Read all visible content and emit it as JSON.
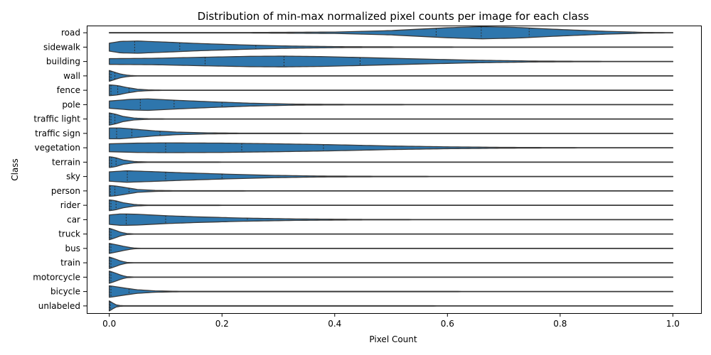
{
  "chart_data": {
    "type": "violin",
    "orientation": "horizontal",
    "title": "Distribution of min-max normalized pixel counts per image for each class",
    "xlabel": "Pixel Count",
    "ylabel": "Class",
    "xlim": [
      -0.04,
      1.05
    ],
    "xticks": [
      0.0,
      0.2,
      0.4,
      0.6,
      0.8,
      1.0
    ],
    "xtick_labels": [
      "0.0",
      "0.2",
      "0.4",
      "0.6",
      "0.8",
      "1.0"
    ],
    "grid": false,
    "color": "#2e76ad",
    "edge_color": "#3a3a3a",
    "categories": [
      "road",
      "sidewalk",
      "building",
      "wall",
      "fence",
      "pole",
      "traffic light",
      "traffic sign",
      "vegetation",
      "terrain",
      "sky",
      "person",
      "rider",
      "car",
      "truck",
      "bus",
      "train",
      "motorcycle",
      "bicycle",
      "unlabeled"
    ],
    "series": [
      {
        "category": "road",
        "quartiles": [
          0.58,
          0.66,
          0.745
        ],
        "profile": [
          [
            0,
            0.03
          ],
          [
            0.25,
            0.04
          ],
          [
            0.4,
            0.1
          ],
          [
            0.5,
            0.3
          ],
          [
            0.6,
            0.7
          ],
          [
            0.66,
            0.85
          ],
          [
            0.72,
            0.75
          ],
          [
            0.8,
            0.45
          ],
          [
            0.88,
            0.2
          ],
          [
            0.95,
            0.05
          ],
          [
            1,
            0.02
          ]
        ]
      },
      {
        "category": "sidewalk",
        "quartiles": [
          0.045,
          0.125,
          0.26
        ],
        "profile": [
          [
            0,
            0.55
          ],
          [
            0.02,
            0.8
          ],
          [
            0.05,
            0.85
          ],
          [
            0.1,
            0.7
          ],
          [
            0.16,
            0.5
          ],
          [
            0.24,
            0.3
          ],
          [
            0.32,
            0.15
          ],
          [
            0.42,
            0.06
          ],
          [
            0.55,
            0.03
          ],
          [
            1,
            0.02
          ]
        ]
      },
      {
        "category": "building",
        "quartiles": [
          0.17,
          0.31,
          0.445
        ],
        "profile": [
          [
            0,
            0.4
          ],
          [
            0.08,
            0.45
          ],
          [
            0.17,
            0.6
          ],
          [
            0.25,
            0.72
          ],
          [
            0.31,
            0.75
          ],
          [
            0.38,
            0.68
          ],
          [
            0.45,
            0.55
          ],
          [
            0.55,
            0.35
          ],
          [
            0.65,
            0.18
          ],
          [
            0.75,
            0.07
          ],
          [
            0.85,
            0.03
          ],
          [
            1,
            0.02
          ]
        ]
      },
      {
        "category": "wall",
        "quartiles": [
          0.0,
          0.003,
          0.01
        ],
        "profile": [
          [
            0,
            0.75
          ],
          [
            0.008,
            0.55
          ],
          [
            0.02,
            0.25
          ],
          [
            0.035,
            0.06
          ],
          [
            0.05,
            0.02
          ],
          [
            1,
            0.02
          ]
        ]
      },
      {
        "category": "fence",
        "quartiles": [
          0.003,
          0.015,
          0.035
        ],
        "profile": [
          [
            0,
            0.75
          ],
          [
            0.015,
            0.65
          ],
          [
            0.03,
            0.4
          ],
          [
            0.05,
            0.15
          ],
          [
            0.07,
            0.05
          ],
          [
            0.1,
            0.02
          ],
          [
            1,
            0.02
          ]
        ]
      },
      {
        "category": "pole",
        "quartiles": [
          0.055,
          0.115,
          0.2
        ],
        "profile": [
          [
            0,
            0.5
          ],
          [
            0.04,
            0.75
          ],
          [
            0.07,
            0.8
          ],
          [
            0.12,
            0.6
          ],
          [
            0.18,
            0.4
          ],
          [
            0.25,
            0.2
          ],
          [
            0.33,
            0.07
          ],
          [
            0.45,
            0.03
          ],
          [
            1,
            0.02
          ]
        ]
      },
      {
        "category": "traffic light",
        "quartiles": [
          0.0,
          0.003,
          0.01
        ],
        "profile": [
          [
            0,
            0.85
          ],
          [
            0.01,
            0.7
          ],
          [
            0.025,
            0.35
          ],
          [
            0.045,
            0.12
          ],
          [
            0.07,
            0.04
          ],
          [
            0.12,
            0.02
          ],
          [
            1,
            0.02
          ]
        ]
      },
      {
        "category": "traffic sign",
        "quartiles": [
          0.013,
          0.04,
          0.09
        ],
        "profile": [
          [
            0,
            0.75
          ],
          [
            0.02,
            0.75
          ],
          [
            0.05,
            0.55
          ],
          [
            0.08,
            0.35
          ],
          [
            0.12,
            0.18
          ],
          [
            0.17,
            0.08
          ],
          [
            0.24,
            0.03
          ],
          [
            1,
            0.02
          ]
        ]
      },
      {
        "category": "vegetation",
        "quartiles": [
          0.1,
          0.235,
          0.38
        ],
        "profile": [
          [
            0,
            0.55
          ],
          [
            0.05,
            0.65
          ],
          [
            0.1,
            0.68
          ],
          [
            0.2,
            0.65
          ],
          [
            0.3,
            0.55
          ],
          [
            0.4,
            0.42
          ],
          [
            0.5,
            0.25
          ],
          [
            0.6,
            0.13
          ],
          [
            0.7,
            0.06
          ],
          [
            0.8,
            0.03
          ],
          [
            1,
            0.02
          ]
        ]
      },
      {
        "category": "terrain",
        "quartiles": [
          0.0,
          0.004,
          0.012
        ],
        "profile": [
          [
            0,
            0.75
          ],
          [
            0.01,
            0.65
          ],
          [
            0.025,
            0.3
          ],
          [
            0.045,
            0.08
          ],
          [
            0.07,
            0.03
          ],
          [
            1,
            0.02
          ]
        ]
      },
      {
        "category": "sky",
        "quartiles": [
          0.032,
          0.1,
          0.2
        ],
        "profile": [
          [
            0,
            0.65
          ],
          [
            0.03,
            0.8
          ],
          [
            0.07,
            0.7
          ],
          [
            0.12,
            0.55
          ],
          [
            0.2,
            0.35
          ],
          [
            0.28,
            0.18
          ],
          [
            0.37,
            0.07
          ],
          [
            0.5,
            0.03
          ],
          [
            1,
            0.02
          ]
        ]
      },
      {
        "category": "person",
        "quartiles": [
          0.002,
          0.01,
          0.035
        ],
        "profile": [
          [
            0,
            0.75
          ],
          [
            0.01,
            0.7
          ],
          [
            0.03,
            0.45
          ],
          [
            0.05,
            0.2
          ],
          [
            0.08,
            0.07
          ],
          [
            0.12,
            0.03
          ],
          [
            1,
            0.02
          ]
        ]
      },
      {
        "category": "rider",
        "quartiles": [
          0.0,
          0.003,
          0.012
        ],
        "profile": [
          [
            0,
            0.75
          ],
          [
            0.01,
            0.65
          ],
          [
            0.025,
            0.35
          ],
          [
            0.045,
            0.1
          ],
          [
            0.07,
            0.03
          ],
          [
            1,
            0.02
          ]
        ]
      },
      {
        "category": "car",
        "quartiles": [
          0.03,
          0.1,
          0.245
        ],
        "profile": [
          [
            0,
            0.65
          ],
          [
            0.02,
            0.8
          ],
          [
            0.05,
            0.75
          ],
          [
            0.1,
            0.55
          ],
          [
            0.16,
            0.38
          ],
          [
            0.24,
            0.22
          ],
          [
            0.33,
            0.1
          ],
          [
            0.45,
            0.04
          ],
          [
            0.6,
            0.02
          ],
          [
            1,
            0.02
          ]
        ]
      },
      {
        "category": "truck",
        "quartiles": [
          0.0,
          0.0,
          0.003
        ],
        "profile": [
          [
            0,
            0.8
          ],
          [
            0.01,
            0.55
          ],
          [
            0.02,
            0.25
          ],
          [
            0.03,
            0.08
          ],
          [
            0.045,
            0.02
          ],
          [
            1,
            0.02
          ]
        ]
      },
      {
        "category": "bus",
        "quartiles": [
          0.0,
          0.0,
          0.003
        ],
        "profile": [
          [
            0,
            0.7
          ],
          [
            0.01,
            0.55
          ],
          [
            0.025,
            0.3
          ],
          [
            0.04,
            0.08
          ],
          [
            0.055,
            0.02
          ],
          [
            1,
            0.02
          ]
        ]
      },
      {
        "category": "train",
        "quartiles": [
          0.0,
          0.0,
          0.003
        ],
        "profile": [
          [
            0,
            0.8
          ],
          [
            0.01,
            0.55
          ],
          [
            0.02,
            0.25
          ],
          [
            0.03,
            0.06
          ],
          [
            0.045,
            0.02
          ],
          [
            1,
            0.02
          ]
        ]
      },
      {
        "category": "motorcycle",
        "quartiles": [
          0.0,
          0.0,
          0.003
        ],
        "profile": [
          [
            0,
            0.85
          ],
          [
            0.01,
            0.6
          ],
          [
            0.02,
            0.3
          ],
          [
            0.03,
            0.08
          ],
          [
            0.045,
            0.02
          ],
          [
            1,
            0.02
          ]
        ]
      },
      {
        "category": "bicycle",
        "quartiles": [
          0.0,
          0.003,
          0.035
        ],
        "profile": [
          [
            0,
            0.8
          ],
          [
            0.01,
            0.7
          ],
          [
            0.03,
            0.45
          ],
          [
            0.05,
            0.25
          ],
          [
            0.08,
            0.1
          ],
          [
            0.12,
            0.04
          ],
          [
            1,
            0.02
          ]
        ]
      },
      {
        "category": "unlabeled",
        "quartiles": [
          0.0,
          0.0,
          0.002
        ],
        "profile": [
          [
            0,
            0.7
          ],
          [
            0.005,
            0.45
          ],
          [
            0.012,
            0.15
          ],
          [
            0.02,
            0.04
          ],
          [
            1,
            0.02
          ]
        ]
      }
    ]
  }
}
